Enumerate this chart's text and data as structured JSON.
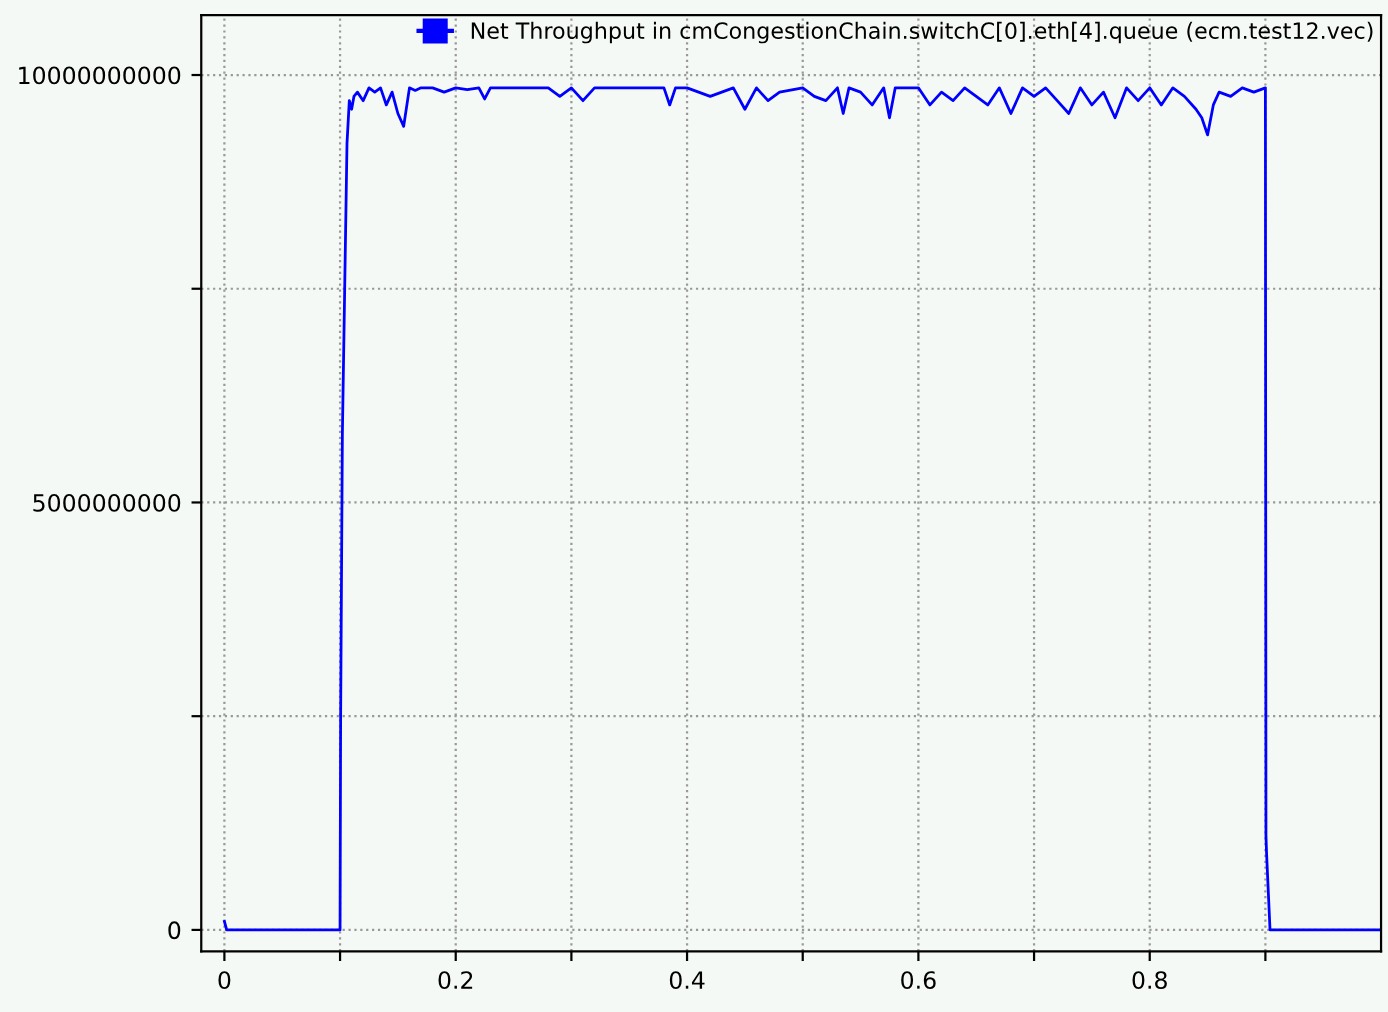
{
  "chart_data": {
    "type": "line",
    "series": [
      {
        "name": "Net Throughput in cmCongestionChain.switchC[0].eth[4].queue (ecm.test12.vec)",
        "color": "#0000ff",
        "x": [
          0,
          0.002,
          0.1,
          0.1005,
          0.102,
          0.104,
          0.106,
          0.108,
          0.11,
          0.112,
          0.115,
          0.12,
          0.125,
          0.13,
          0.135,
          0.14,
          0.145,
          0.15,
          0.155,
          0.16,
          0.165,
          0.17,
          0.18,
          0.19,
          0.2,
          0.21,
          0.22,
          0.225,
          0.23,
          0.24,
          0.26,
          0.28,
          0.29,
          0.3,
          0.31,
          0.32,
          0.34,
          0.36,
          0.38,
          0.385,
          0.39,
          0.4,
          0.42,
          0.44,
          0.45,
          0.46,
          0.47,
          0.48,
          0.5,
          0.51,
          0.52,
          0.53,
          0.535,
          0.54,
          0.55,
          0.56,
          0.57,
          0.575,
          0.58,
          0.6,
          0.61,
          0.62,
          0.63,
          0.64,
          0.65,
          0.66,
          0.67,
          0.68,
          0.69,
          0.7,
          0.71,
          0.72,
          0.73,
          0.74,
          0.75,
          0.76,
          0.77,
          0.78,
          0.79,
          0.8,
          0.81,
          0.82,
          0.83,
          0.84,
          0.845,
          0.85,
          0.855,
          0.86,
          0.87,
          0.88,
          0.89,
          0.9,
          0.9005,
          0.901,
          0.902,
          0.903,
          0.904,
          0.92,
          0.96,
          0.998
        ],
        "values": [
          100000000,
          0,
          0,
          2500000000,
          5800000000,
          7500000000,
          9200000000,
          9700000000,
          9600000000,
          9750000000,
          9800000000,
          9700000000,
          9850000000,
          9800000000,
          9850000000,
          9650000000,
          9800000000,
          9550000000,
          9400000000,
          9850000000,
          9820000000,
          9850000000,
          9850000000,
          9800000000,
          9850000000,
          9830000000,
          9850000000,
          9720000000,
          9850000000,
          9850000000,
          9850000000,
          9850000000,
          9750000000,
          9850000000,
          9700000000,
          9850000000,
          9850000000,
          9850000000,
          9850000000,
          9650000000,
          9850000000,
          9850000000,
          9750000000,
          9850000000,
          9600000000,
          9850000000,
          9700000000,
          9800000000,
          9850000000,
          9750000000,
          9700000000,
          9850000000,
          9550000000,
          9850000000,
          9800000000,
          9650000000,
          9850000000,
          9500000000,
          9850000000,
          9850000000,
          9650000000,
          9800000000,
          9700000000,
          9850000000,
          9750000000,
          9650000000,
          9850000000,
          9550000000,
          9850000000,
          9750000000,
          9850000000,
          9700000000,
          9550000000,
          9850000000,
          9650000000,
          9800000000,
          9500000000,
          9850000000,
          9700000000,
          9850000000,
          9650000000,
          9850000000,
          9750000000,
          9600000000,
          9500000000,
          9300000000,
          9650000000,
          9800000000,
          9750000000,
          9850000000,
          9800000000,
          9850000000,
          1100000000,
          900000000,
          600000000,
          300000000,
          0,
          0,
          0,
          0
        ]
      }
    ],
    "xlim": [
      -0.02,
      1.0
    ],
    "ylim": [
      -250000000,
      10700000000
    ],
    "xticks": [
      0,
      {
        "value": 0.1,
        "label": null
      },
      0.2,
      {
        "value": 0.3,
        "label": null
      },
      0.4,
      {
        "value": 0.5,
        "label": null
      },
      0.6,
      {
        "value": 0.7,
        "label": null
      },
      0.8,
      {
        "value": 0.9,
        "label": null
      }
    ],
    "yticks": [
      0,
      {
        "value": 2500000000,
        "label": null
      },
      5000000000,
      {
        "value": 7500000000,
        "label": null
      },
      10000000000
    ],
    "grid": true,
    "legend": "top right",
    "marker": "none",
    "line_style": "solid"
  }
}
